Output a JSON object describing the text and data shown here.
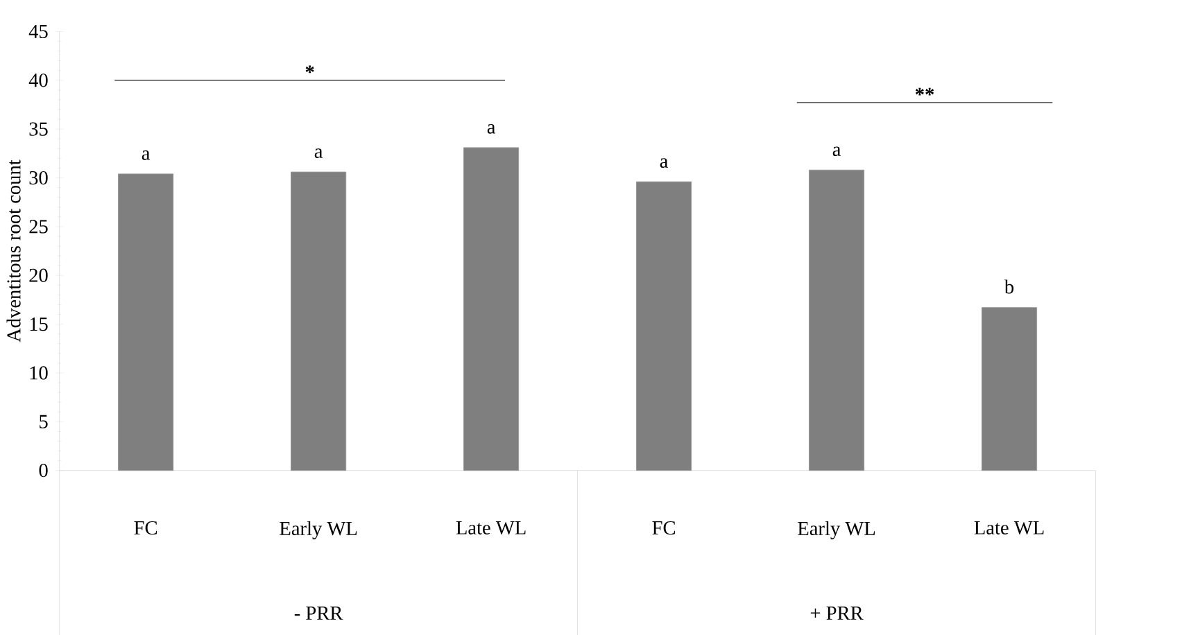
{
  "chart_data": {
    "type": "bar",
    "ylabel": "Adventitous root count",
    "categories": [
      "FC",
      "Early WL",
      "Late WL",
      "FC",
      "Early WL",
      "Late WL"
    ],
    "values": [
      30.4,
      30.6,
      33.1,
      29.6,
      30.8,
      16.7
    ],
    "color": "#7f7f7f",
    "ylim": [
      0,
      45
    ],
    "yticks": [
      0,
      5,
      10,
      15,
      20,
      25,
      30,
      35,
      40,
      45
    ],
    "grid": false,
    "annotations": [
      "*",
      "**",
      "a",
      "a",
      "a",
      "a",
      "a",
      "b",
      "- PRR",
      "+ PRR"
    ]
  }
}
